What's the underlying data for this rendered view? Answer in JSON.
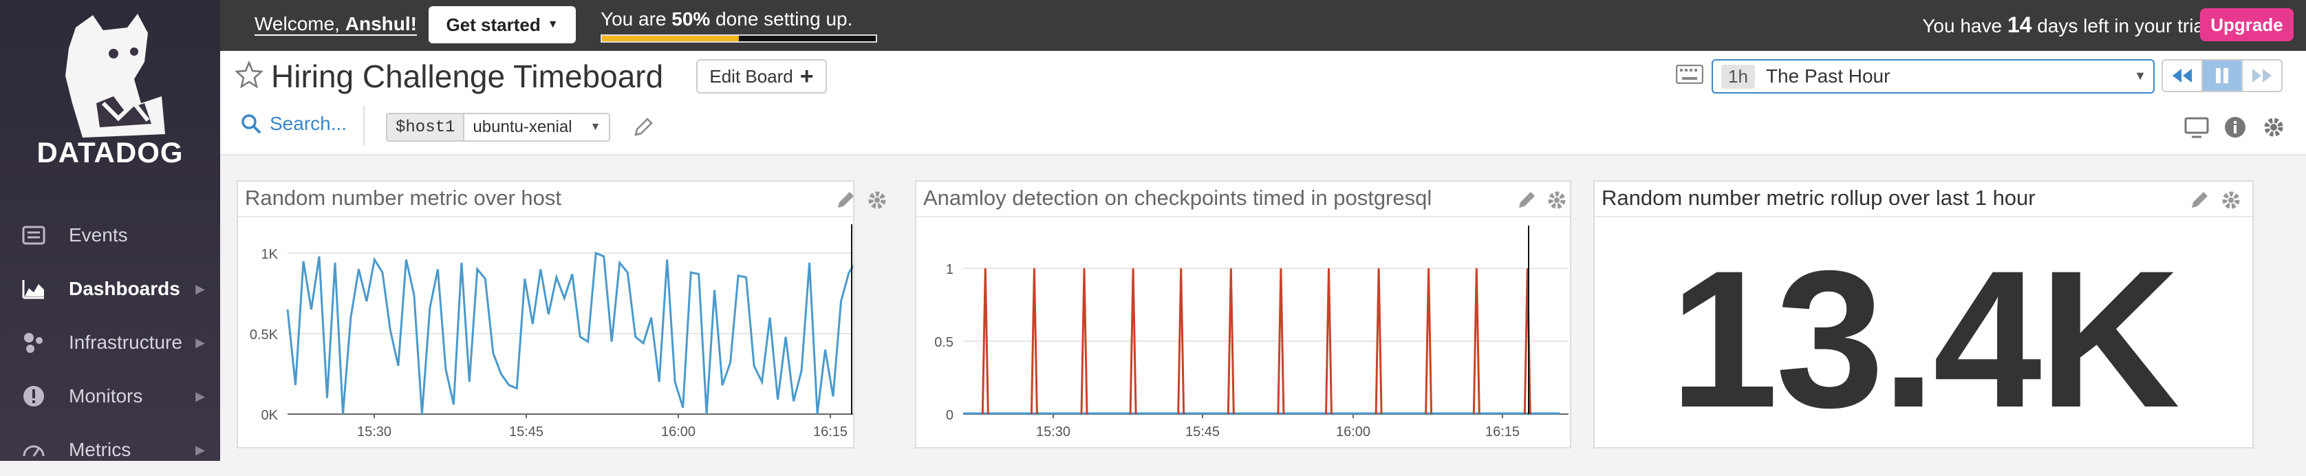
{
  "sidebar": {
    "brand": "DATADOG",
    "items": [
      {
        "label": "Events",
        "icon": "events-icon",
        "chevron": false
      },
      {
        "label": "Dashboards",
        "icon": "dashboards-icon",
        "chevron": true,
        "active": true
      },
      {
        "label": "Infrastructure",
        "icon": "infrastructure-icon",
        "chevron": true
      },
      {
        "label": "Monitors",
        "icon": "monitors-icon",
        "chevron": true
      },
      {
        "label": "Metrics",
        "icon": "metrics-icon",
        "chevron": true
      }
    ]
  },
  "topbar": {
    "welcome_prefix": "Welcome, ",
    "welcome_name": "Anshul!",
    "get_started": "Get started",
    "progress_prefix": "You are ",
    "progress_percent": "50%",
    "progress_suffix": " done setting up.",
    "progress_value": 0.5,
    "trial_prefix": "You have ",
    "trial_days": "14",
    "trial_suffix": " days left in your trial.",
    "upgrade": "Upgrade",
    "accent": "#e8398e",
    "progress_color": "#f4b81f"
  },
  "header": {
    "title": "Hiring Challenge Timeboard",
    "edit_board": "Edit Board",
    "search": "Search...",
    "template_var": {
      "name": "$host1",
      "value": "ubuntu-xenial"
    },
    "timeframe": {
      "short": "1h",
      "label": "The Past Hour"
    }
  },
  "widgets": [
    {
      "title": "Random number metric over host"
    },
    {
      "title": "Anamloy detection on checkpoints timed in postgresql"
    },
    {
      "title": "Random number metric rollup over last 1 hour",
      "value": "13.4K"
    }
  ],
  "chart_data": [
    {
      "type": "line",
      "title": "Random number metric over host",
      "ylim": [
        0,
        1000
      ],
      "yticks": [
        "0K",
        "0.5K",
        "1K"
      ],
      "xticks": [
        "15:30",
        "15:45",
        "16:00",
        "16:15"
      ],
      "x_range_minutes": [
        15.383,
        16.33
      ],
      "cursor_x": "16:18",
      "color": "#4a9acc",
      "series": [
        {
          "values": [
            650,
            180,
            950,
            650,
            980,
            100,
            940,
            0,
            600,
            900,
            700,
            960,
            880,
            520,
            300,
            960,
            740,
            0,
            660,
            900,
            280,
            60,
            940,
            200,
            900,
            840,
            380,
            250,
            180,
            160,
            840,
            560,
            900,
            620,
            850,
            720,
            870,
            480,
            450,
            1000,
            980,
            450,
            940,
            880,
            480,
            440,
            600,
            200,
            960,
            200,
            40,
            880,
            870,
            0,
            770,
            180,
            320,
            860,
            850,
            300,
            200,
            600,
            90,
            480,
            80,
            270,
            940,
            0,
            400,
            110,
            700,
            880,
            950,
            420,
            490,
            660
          ]
        }
      ]
    },
    {
      "type": "line",
      "title": "Anamloy detection on checkpoints timed in postgresql",
      "ylim": [
        0,
        1
      ],
      "yticks": [
        "0",
        "0.5",
        "1"
      ],
      "xticks": [
        "15:30",
        "15:45",
        "16:00",
        "16:15"
      ],
      "cursor_x": "16:18",
      "series": [
        {
          "name": "",
          "color": "#c8432a",
          "spikes_at_minute_offsets": [
            3.8,
            8.8,
            13.8,
            18.8,
            23.8,
            28.8,
            33.8,
            38.8,
            43.8,
            48.8,
            53.8,
            58.8
          ]
        },
        {
          "name": "",
          "color": "#4a9acc",
          "values": [
            0,
            0
          ]
        }
      ]
    }
  ]
}
